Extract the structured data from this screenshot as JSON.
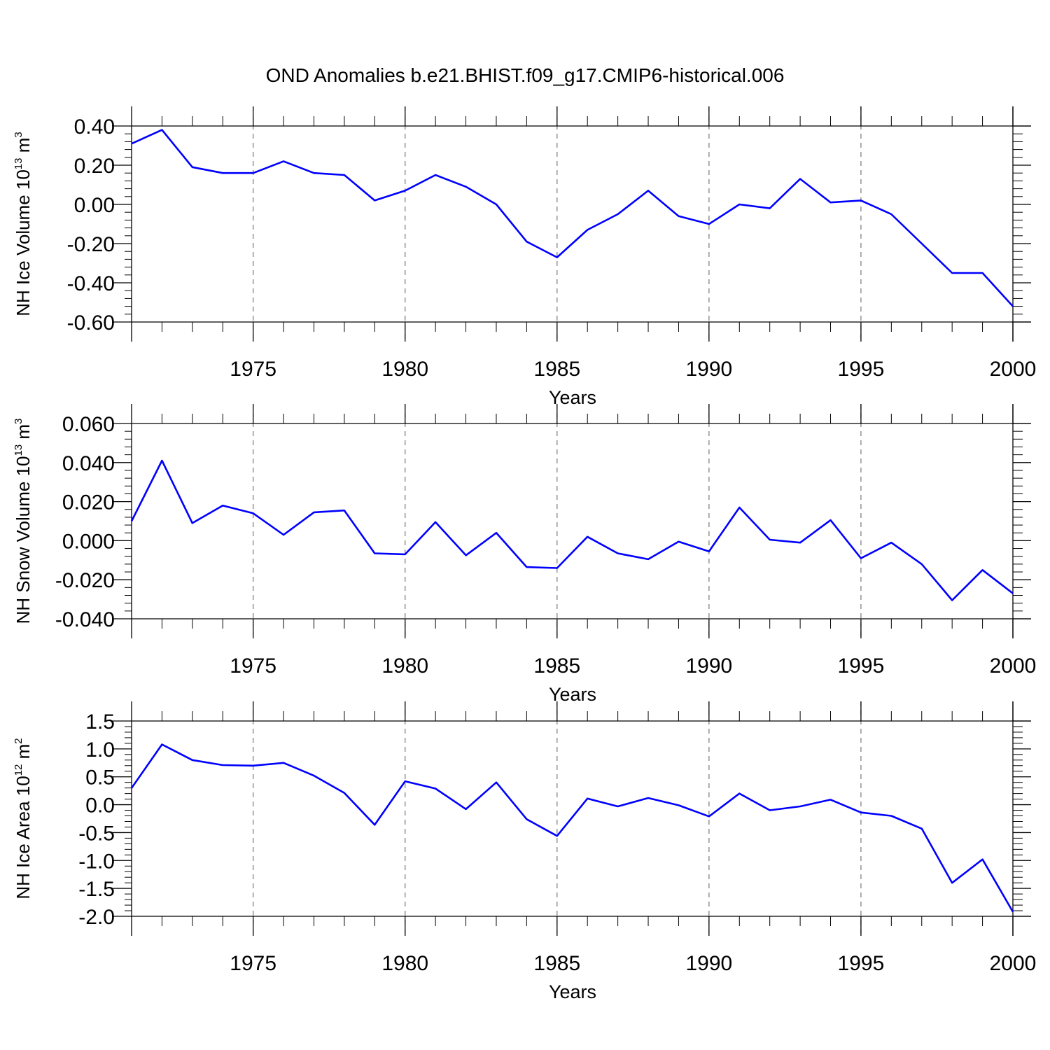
{
  "title": "OND Anomalies b.e21.BHIST.f09_g17.CMIP6-historical.006",
  "colors": {
    "line": "#0000ff",
    "axis": "#000000",
    "grid": "#808080"
  },
  "chart_data": [
    {
      "type": "line",
      "ylabel": {
        "main": "NH Ice Volume 10",
        "sup1": "13",
        "unit": " m",
        "sup2": "3"
      },
      "xlabel": "Years",
      "xlim": [
        1971,
        2000
      ],
      "ylim": [
        -0.6,
        0.4
      ],
      "yticks": [
        0.4,
        0.2,
        0.0,
        -0.2,
        -0.4,
        -0.6
      ],
      "ytick_labels": [
        "0.40",
        "0.20",
        "0.00",
        "-0.20",
        "-0.40",
        "-0.60"
      ],
      "xticks": [
        1975,
        1980,
        1985,
        1990,
        1995,
        2000
      ],
      "xtick_labels": [
        "1975",
        "1980",
        "1985",
        "1990",
        "1995",
        "2000"
      ],
      "grid": "vertical dashed at major x ticks",
      "x": [
        1971,
        1972,
        1973,
        1974,
        1975,
        1976,
        1977,
        1978,
        1979,
        1980,
        1981,
        1982,
        1983,
        1984,
        1985,
        1986,
        1987,
        1988,
        1989,
        1990,
        1991,
        1992,
        1993,
        1994,
        1995,
        1996,
        1997,
        1998,
        1999,
        2000
      ],
      "series": [
        {
          "values": [
            0.31,
            0.38,
            0.19,
            0.16,
            0.16,
            0.22,
            0.16,
            0.15,
            0.02,
            0.07,
            0.15,
            0.09,
            0.0,
            -0.19,
            -0.27,
            -0.13,
            -0.05,
            0.07,
            -0.06,
            -0.1,
            0.0,
            -0.02,
            0.13,
            0.01,
            0.02,
            -0.05,
            -0.2,
            -0.35,
            -0.35,
            -0.52
          ]
        }
      ]
    },
    {
      "type": "line",
      "ylabel": {
        "main": "NH Snow Volume 10",
        "sup1": "13",
        "unit": " m",
        "sup2": "3"
      },
      "xlabel": "Years",
      "xlim": [
        1971,
        2000
      ],
      "ylim": [
        -0.04,
        0.06
      ],
      "yticks": [
        0.06,
        0.04,
        0.02,
        0.0,
        -0.02,
        -0.04
      ],
      "ytick_labels": [
        "0.060",
        "0.040",
        "0.020",
        "0.000",
        "-0.020",
        "-0.040"
      ],
      "xticks": [
        1975,
        1980,
        1985,
        1990,
        1995,
        2000
      ],
      "xtick_labels": [
        "1975",
        "1980",
        "1985",
        "1990",
        "1995",
        "2000"
      ],
      "grid": "vertical dashed at major x ticks",
      "x": [
        1971,
        1972,
        1973,
        1974,
        1975,
        1976,
        1977,
        1978,
        1979,
        1980,
        1981,
        1982,
        1983,
        1984,
        1985,
        1986,
        1987,
        1988,
        1989,
        1990,
        1991,
        1992,
        1993,
        1994,
        1995,
        1996,
        1997,
        1998,
        1999,
        2000
      ],
      "series": [
        {
          "values": [
            0.01,
            0.041,
            0.009,
            0.018,
            0.014,
            0.003,
            0.0145,
            0.0155,
            -0.0065,
            -0.007,
            0.0095,
            -0.0075,
            0.004,
            -0.0135,
            -0.014,
            0.002,
            -0.0065,
            -0.0095,
            -0.0005,
            -0.0055,
            0.017,
            0.0005,
            -0.001,
            0.0105,
            -0.009,
            -0.001,
            -0.012,
            -0.0305,
            -0.015,
            -0.027
          ]
        }
      ]
    },
    {
      "type": "line",
      "ylabel": {
        "main": "NH Ice Area 10",
        "sup1": "12",
        "unit": " m",
        "sup2": "2"
      },
      "xlabel": "Years",
      "xlim": [
        1971,
        2000
      ],
      "ylim": [
        -2.0,
        1.5
      ],
      "yticks": [
        1.5,
        1.0,
        0.5,
        0.0,
        -0.5,
        -1.0,
        -1.5,
        -2.0
      ],
      "ytick_labels": [
        "1.5",
        "1.0",
        "0.5",
        "0.0",
        "-0.5",
        "-1.0",
        "-1.5",
        "-2.0"
      ],
      "xticks": [
        1975,
        1980,
        1985,
        1990,
        1995,
        2000
      ],
      "xtick_labels": [
        "1975",
        "1980",
        "1985",
        "1990",
        "1995",
        "2000"
      ],
      "grid": "vertical dashed at major x ticks",
      "x": [
        1971,
        1972,
        1973,
        1974,
        1975,
        1976,
        1977,
        1978,
        1979,
        1980,
        1981,
        1982,
        1983,
        1984,
        1985,
        1986,
        1987,
        1988,
        1989,
        1990,
        1991,
        1992,
        1993,
        1994,
        1995,
        1996,
        1997,
        1998,
        1999,
        2000
      ],
      "series": [
        {
          "values": [
            0.3,
            1.08,
            0.8,
            0.71,
            0.7,
            0.75,
            0.52,
            0.21,
            -0.36,
            0.42,
            0.29,
            -0.08,
            0.4,
            -0.26,
            -0.56,
            0.11,
            -0.03,
            0.12,
            -0.01,
            -0.21,
            0.2,
            -0.1,
            -0.03,
            0.09,
            -0.14,
            -0.2,
            -0.43,
            -1.4,
            -0.98,
            -1.92
          ]
        }
      ]
    }
  ]
}
